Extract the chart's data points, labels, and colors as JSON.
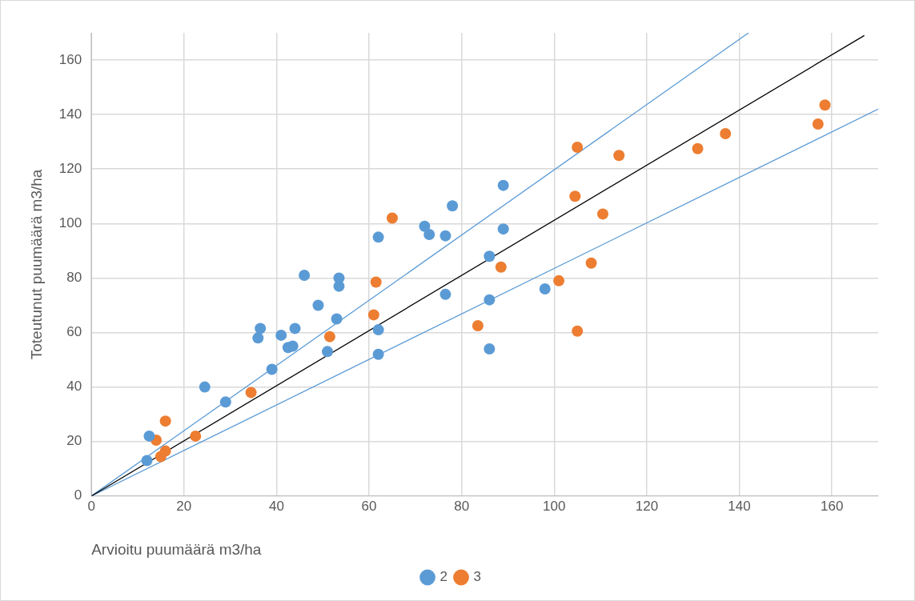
{
  "chart_data": {
    "type": "scatter",
    "xlabel": "Arvioitu puumäärä m3/ha",
    "ylabel": "Toteutunut puumäärä m3/ha",
    "xlim": [
      0,
      170
    ],
    "ylim": [
      0,
      170
    ],
    "xticks": [
      0,
      20,
      40,
      60,
      80,
      100,
      120,
      140,
      160
    ],
    "yticks": [
      0,
      20,
      40,
      60,
      80,
      100,
      120,
      140,
      160
    ],
    "grid": true,
    "legend": "bottom",
    "marker": "circle",
    "series": [
      {
        "name": "2",
        "color": "#5b9bd5",
        "x": [
          12,
          12.5,
          24.5,
          29,
          36,
          36.5,
          39,
          41,
          42.5,
          43.5,
          44,
          46,
          49,
          51,
          53,
          53.5,
          53.5,
          62,
          62,
          62,
          72,
          73,
          76.5,
          76.5,
          78,
          86,
          86,
          86,
          89,
          89,
          98
        ],
        "values": [
          13,
          22,
          40,
          34.5,
          58,
          61.5,
          46.5,
          59,
          54.5,
          55,
          61.5,
          81,
          70,
          53,
          65,
          77,
          80,
          95,
          61,
          52,
          99,
          96,
          95.5,
          74,
          106.5,
          88,
          72,
          54,
          98,
          114,
          76
        ]
      },
      {
        "name": "3",
        "color": "#ed7d31",
        "x": [
          14,
          15,
          16,
          16,
          22.5,
          34.5,
          51.5,
          61,
          61.5,
          65,
          83.5,
          88.5,
          101,
          104.5,
          105,
          105,
          108,
          110.5,
          114,
          131,
          137,
          157,
          158.5
        ],
        "values": [
          20.5,
          14.5,
          16.5,
          27.5,
          22,
          38,
          58.5,
          66.5,
          78.5,
          102,
          62.5,
          84,
          79,
          110,
          128,
          60.5,
          85.5,
          103.5,
          125,
          127.5,
          133,
          136.5,
          143.5
        ]
      },
      {
        "type": "line",
        "color": "#000000",
        "marker": "none",
        "x": [
          0,
          167
        ],
        "values": [
          0,
          169
        ]
      },
      {
        "type": "line",
        "color": "#5b9bd5",
        "marker": "none",
        "x": [
          0,
          142
        ],
        "values": [
          0,
          170
        ]
      },
      {
        "type": "line",
        "color": "#5b9bd5",
        "marker": "none",
        "x": [
          0,
          170
        ],
        "values": [
          0,
          142
        ]
      }
    ]
  }
}
